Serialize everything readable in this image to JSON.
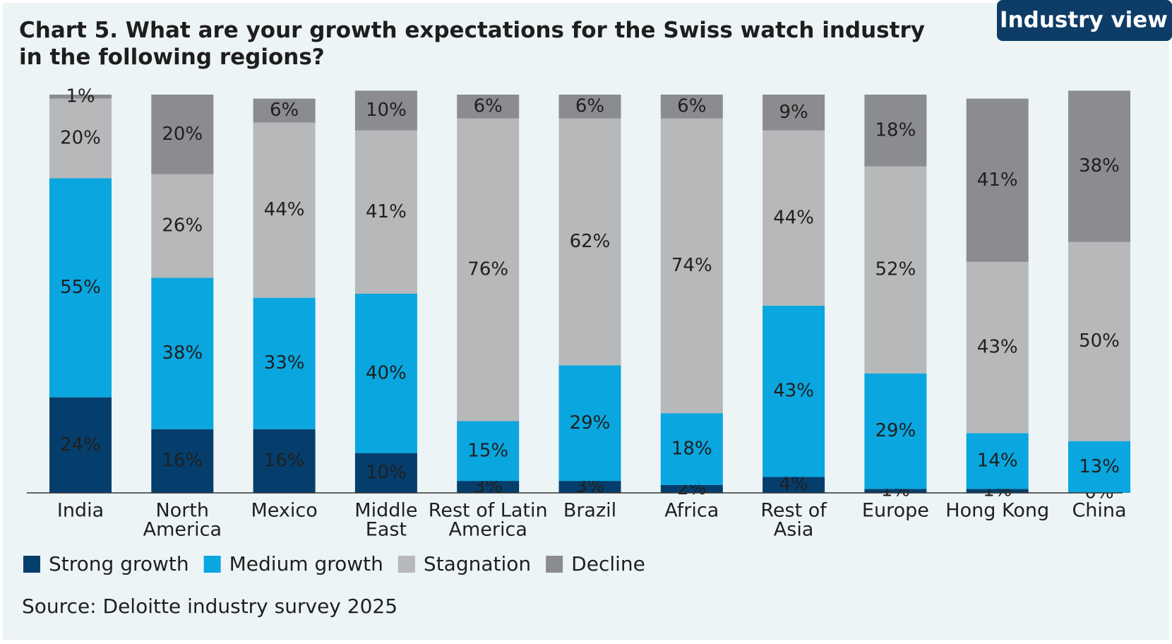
{
  "chart_data": {
    "type": "stacked_bar",
    "badge": "Industry view",
    "title": [
      "Chart 5. What are your growth expectations for the Swiss watch industry",
      "in the following regions?"
    ],
    "categories": [
      [
        "India"
      ],
      [
        "North",
        "America"
      ],
      [
        "Mexico"
      ],
      [
        "Middle",
        "East"
      ],
      [
        "Rest of Latin",
        "America"
      ],
      [
        "Brazil"
      ],
      [
        "Africa"
      ],
      [
        "Rest of",
        "Asia"
      ],
      [
        "Europe"
      ],
      [
        "Hong Kong"
      ],
      [
        "China"
      ]
    ],
    "ylim": [
      0,
      100
    ],
    "series": [
      {
        "name": "Strong growth",
        "color": "#053e6c",
        "label_color": "#ffffff",
        "values": [
          24,
          16,
          16,
          10,
          3,
          3,
          2,
          4,
          1,
          1,
          0
        ],
        "value_labels": [
          "24%",
          "16%",
          "16%",
          "10%",
          "3%",
          "3%",
          "2%",
          "4%",
          "1%",
          "1%",
          "0%"
        ]
      },
      {
        "name": "Medium growth",
        "color": "#0aa6df",
        "label_color": "#1d2b3c",
        "values": [
          55,
          38,
          33,
          40,
          15,
          29,
          18,
          43,
          29,
          14,
          13
        ],
        "value_labels": [
          "55%",
          "38%",
          "33%",
          "40%",
          "15%",
          "29%",
          "18%",
          "43%",
          "29%",
          "14%",
          "13%"
        ]
      },
      {
        "name": "Stagnation",
        "color": "#b6b8ba",
        "label_color": "#2a2a2a",
        "values": [
          20,
          26,
          44,
          41,
          76,
          62,
          74,
          44,
          52,
          43,
          50
        ],
        "value_labels": [
          "20%",
          "26%",
          "44%",
          "41%",
          "76%",
          "62%",
          "74%",
          "44%",
          "52%",
          "43%",
          "50%"
        ]
      },
      {
        "name": "Decline",
        "color": "#8b8c8f",
        "label_color": "#ffffff",
        "values": [
          1,
          20,
          6,
          10,
          6,
          6,
          6,
          9,
          18,
          41,
          38
        ],
        "value_labels": [
          "1%",
          "20%",
          "6%",
          "10%",
          "6%",
          "6%",
          "6%",
          "9%",
          "18%",
          "41%",
          "38%"
        ]
      }
    ],
    "source": "Source: Deloitte industry survey 2025"
  }
}
